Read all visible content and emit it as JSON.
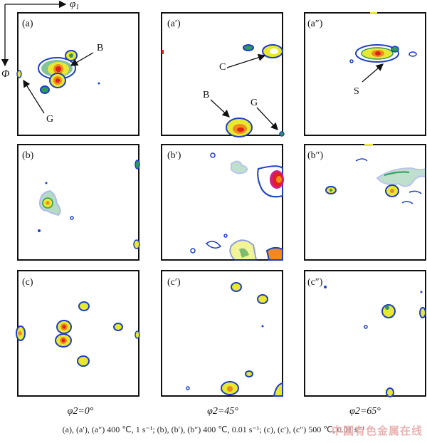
{
  "axes": {
    "phi1_label": "φ",
    "phi1_sub": "1",
    "Phi_label": "Φ"
  },
  "panels": [
    {
      "id": "a",
      "label": "(a)",
      "markers": [
        {
          "text": "B"
        },
        {
          "text": "G"
        }
      ]
    },
    {
      "id": "a1",
      "label": "(a′)",
      "markers": [
        {
          "text": "C"
        },
        {
          "text": "B"
        },
        {
          "text": "G"
        }
      ]
    },
    {
      "id": "a2",
      "label": "(a″)",
      "markers": [
        {
          "text": "S"
        }
      ]
    },
    {
      "id": "b",
      "label": "(b)",
      "markers": []
    },
    {
      "id": "b1",
      "label": "(b′)",
      "markers": []
    },
    {
      "id": "b2",
      "label": "(b″)",
      "markers": []
    },
    {
      "id": "c",
      "label": "(c)",
      "markers": []
    },
    {
      "id": "c1",
      "label": "(c′)",
      "markers": []
    },
    {
      "id": "c2",
      "label": "(c″)",
      "markers": []
    }
  ],
  "columns": [
    "φ2=0°",
    "φ2=45°",
    "φ2=65°"
  ],
  "caption": "(a), (a′), (a″) 400 ℃, 1 s⁻¹; (b), (b′), (b″) 400 ℃, 0.01 s⁻¹; (c), (c′), (c″) 500 ℃, 0.01 s⁻¹",
  "watermark": "中国有色金属在线",
  "colors": {
    "level1": "#1f3fbf",
    "level2": "#2e9a5a",
    "level3": "#e8e832",
    "level4": "#f08a1c",
    "level5": "#e0201a",
    "level6": "#d41b8a"
  }
}
